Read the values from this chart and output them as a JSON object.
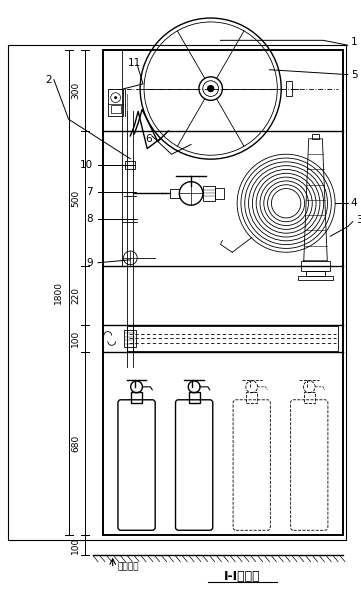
{
  "bg_color": "#ffffff",
  "line_color": "#000000",
  "fig_width": 3.61,
  "fig_height": 6.0,
  "dpi": 100,
  "floor_label": "室内地面",
  "subtitle": "I-I剑面图",
  "segments_mm": [
    300,
    500,
    220,
    100,
    680
  ],
  "total_cabinet_mm": 1800,
  "labels": [
    "1",
    "2",
    "3",
    "4",
    "5",
    "6",
    "7",
    "8",
    "9",
    "10",
    "11"
  ]
}
